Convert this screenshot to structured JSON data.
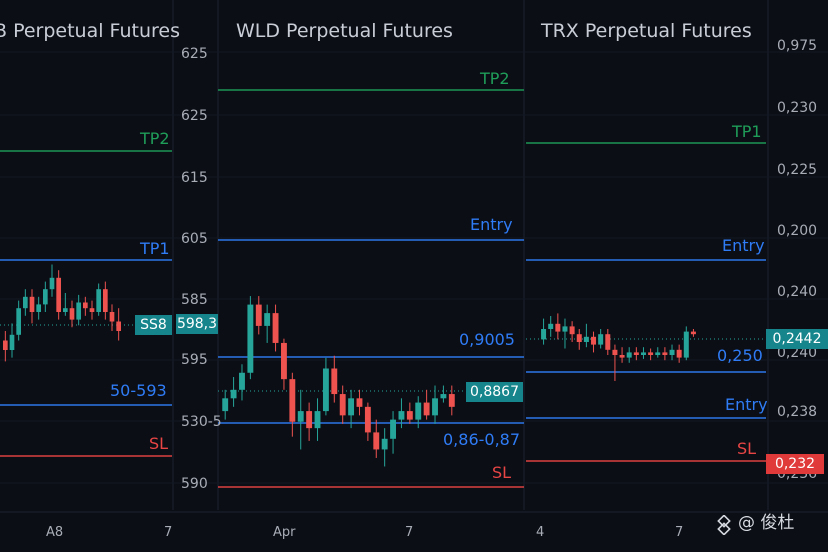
{
  "colors": {
    "background": "#0b0e15",
    "bullish": "#26a69a",
    "bearish": "#ef5350",
    "tp": "#1f9e59",
    "entry": "#2f7cf6",
    "sl": "#e84545",
    "tag_teal": "#16868c",
    "tag_red": "#e03a3a"
  },
  "watermark": {
    "icon": "binance-diamond-icon",
    "text": "@ 俊杜"
  },
  "chart_data": [
    {
      "type": "candlestick",
      "title": "B Perpetual Futures",
      "x_tick_labels": [
        "A8",
        "7"
      ],
      "price_axis_labels": [
        "625",
        "625",
        "615",
        "605",
        "585",
        "598,3",
        "595",
        "530-5",
        "590"
      ],
      "current_price_label": "SS8",
      "levels": [
        {
          "label": "TP2",
          "kind": "tp"
        },
        {
          "label": "TP1",
          "kind": "entry"
        },
        {
          "label": "50-593",
          "kind": "entry"
        },
        {
          "label": "SL",
          "kind": "sl"
        }
      ],
      "series": [
        {
          "ohlc_rel": [
            [
              0.55,
              0.5,
              0.6,
              0.44
            ],
            [
              0.5,
              0.58,
              0.64,
              0.46
            ],
            [
              0.58,
              0.72,
              0.76,
              0.55
            ],
            [
              0.72,
              0.78,
              0.82,
              0.68
            ],
            [
              0.78,
              0.7,
              0.82,
              0.64
            ],
            [
              0.7,
              0.74,
              0.78,
              0.66
            ],
            [
              0.74,
              0.82,
              0.86,
              0.7
            ],
            [
              0.82,
              0.88,
              0.95,
              0.78
            ],
            [
              0.88,
              0.7,
              0.92,
              0.66
            ],
            [
              0.7,
              0.72,
              0.8,
              0.68
            ],
            [
              0.72,
              0.66,
              0.76,
              0.62
            ],
            [
              0.66,
              0.75,
              0.79,
              0.63
            ],
            [
              0.75,
              0.72,
              0.78,
              0.68
            ],
            [
              0.72,
              0.7,
              0.76,
              0.66
            ],
            [
              0.7,
              0.82,
              0.85,
              0.68
            ],
            [
              0.82,
              0.7,
              0.86,
              0.66
            ],
            [
              0.7,
              0.65,
              0.74,
              0.6
            ],
            [
              0.65,
              0.6,
              0.72,
              0.55
            ]
          ]
        }
      ]
    },
    {
      "type": "candlestick",
      "title": "WLD Perpetual Futures",
      "x_tick_labels": [
        "Apr",
        "7"
      ],
      "current_price_label": "0,8867",
      "levels": [
        {
          "label": "TP2",
          "kind": "tp"
        },
        {
          "label": "Entry",
          "kind": "entry"
        },
        {
          "label": "0,9005",
          "kind": "entry"
        },
        {
          "label": "0,86-0,87",
          "kind": "entry"
        },
        {
          "label": "SL",
          "kind": "sl"
        }
      ],
      "series": [
        {
          "ohlc_rel": [
            [
              0.3,
              0.36,
              0.4,
              0.26
            ],
            [
              0.36,
              0.4,
              0.46,
              0.32
            ],
            [
              0.4,
              0.48,
              0.52,
              0.35
            ],
            [
              0.48,
              0.8,
              0.84,
              0.45
            ],
            [
              0.8,
              0.7,
              0.84,
              0.66
            ],
            [
              0.7,
              0.76,
              0.8,
              0.62
            ],
            [
              0.76,
              0.62,
              0.8,
              0.58
            ],
            [
              0.62,
              0.45,
              0.64,
              0.4
            ],
            [
              0.45,
              0.25,
              0.48,
              0.18
            ],
            [
              0.25,
              0.3,
              0.4,
              0.12
            ],
            [
              0.3,
              0.22,
              0.34,
              0.16
            ],
            [
              0.22,
              0.3,
              0.36,
              0.16
            ],
            [
              0.3,
              0.5,
              0.55,
              0.28
            ],
            [
              0.5,
              0.38,
              0.56,
              0.34
            ],
            [
              0.38,
              0.28,
              0.42,
              0.24
            ],
            [
              0.28,
              0.36,
              0.4,
              0.22
            ],
            [
              0.36,
              0.32,
              0.4,
              0.28
            ],
            [
              0.32,
              0.2,
              0.34,
              0.16
            ],
            [
              0.2,
              0.12,
              0.26,
              0.08
            ],
            [
              0.12,
              0.17,
              0.22,
              0.04
            ],
            [
              0.17,
              0.26,
              0.3,
              0.1
            ],
            [
              0.26,
              0.3,
              0.36,
              0.22
            ],
            [
              0.3,
              0.26,
              0.34,
              0.24
            ],
            [
              0.26,
              0.34,
              0.37,
              0.22
            ],
            [
              0.34,
              0.28,
              0.4,
              0.26
            ],
            [
              0.28,
              0.36,
              0.42,
              0.24
            ],
            [
              0.36,
              0.38,
              0.42,
              0.34
            ],
            [
              0.38,
              0.32,
              0.42,
              0.28
            ]
          ]
        }
      ]
    },
    {
      "type": "candlestick",
      "title": "TRX Perpetual Futures",
      "x_tick_labels": [
        "4",
        "7"
      ],
      "price_axis_labels": [
        "0,975",
        "0,230",
        "0,225",
        "0,200",
        "0,240",
        "0,240",
        "0,238",
        "0,236"
      ],
      "current_price_labels": [
        "0,2442",
        "0,232"
      ],
      "levels": [
        {
          "label": "TP1",
          "kind": "tp"
        },
        {
          "label": "Entry",
          "kind": "entry"
        },
        {
          "label": "0,250",
          "kind": "entry"
        },
        {
          "label": "Entry",
          "kind": "entry"
        },
        {
          "label": "SL",
          "kind": "sl"
        }
      ],
      "series": [
        {
          "ohlc_rel": [
            [
              0.62,
              0.7,
              0.78,
              0.58
            ],
            [
              0.7,
              0.74,
              0.8,
              0.64
            ],
            [
              0.74,
              0.68,
              0.82,
              0.62
            ],
            [
              0.68,
              0.72,
              0.78,
              0.55
            ],
            [
              0.72,
              0.66,
              0.76,
              0.6
            ],
            [
              0.66,
              0.6,
              0.7,
              0.54
            ],
            [
              0.6,
              0.64,
              0.74,
              0.56
            ],
            [
              0.64,
              0.58,
              0.68,
              0.52
            ],
            [
              0.58,
              0.66,
              0.7,
              0.55
            ],
            [
              0.66,
              0.54,
              0.7,
              0.5
            ],
            [
              0.54,
              0.5,
              0.58,
              0.3
            ],
            [
              0.5,
              0.48,
              0.56,
              0.44
            ],
            [
              0.48,
              0.52,
              0.56,
              0.44
            ],
            [
              0.52,
              0.5,
              0.56,
              0.46
            ],
            [
              0.5,
              0.52,
              0.56,
              0.47
            ],
            [
              0.52,
              0.5,
              0.55,
              0.46
            ],
            [
              0.5,
              0.52,
              0.56,
              0.48
            ],
            [
              0.52,
              0.5,
              0.56,
              0.46
            ],
            [
              0.5,
              0.54,
              0.58,
              0.46
            ],
            [
              0.54,
              0.48,
              0.58,
              0.44
            ],
            [
              0.48,
              0.68,
              0.72,
              0.46
            ],
            [
              0.68,
              0.66,
              0.7,
              0.64
            ]
          ]
        }
      ]
    }
  ]
}
